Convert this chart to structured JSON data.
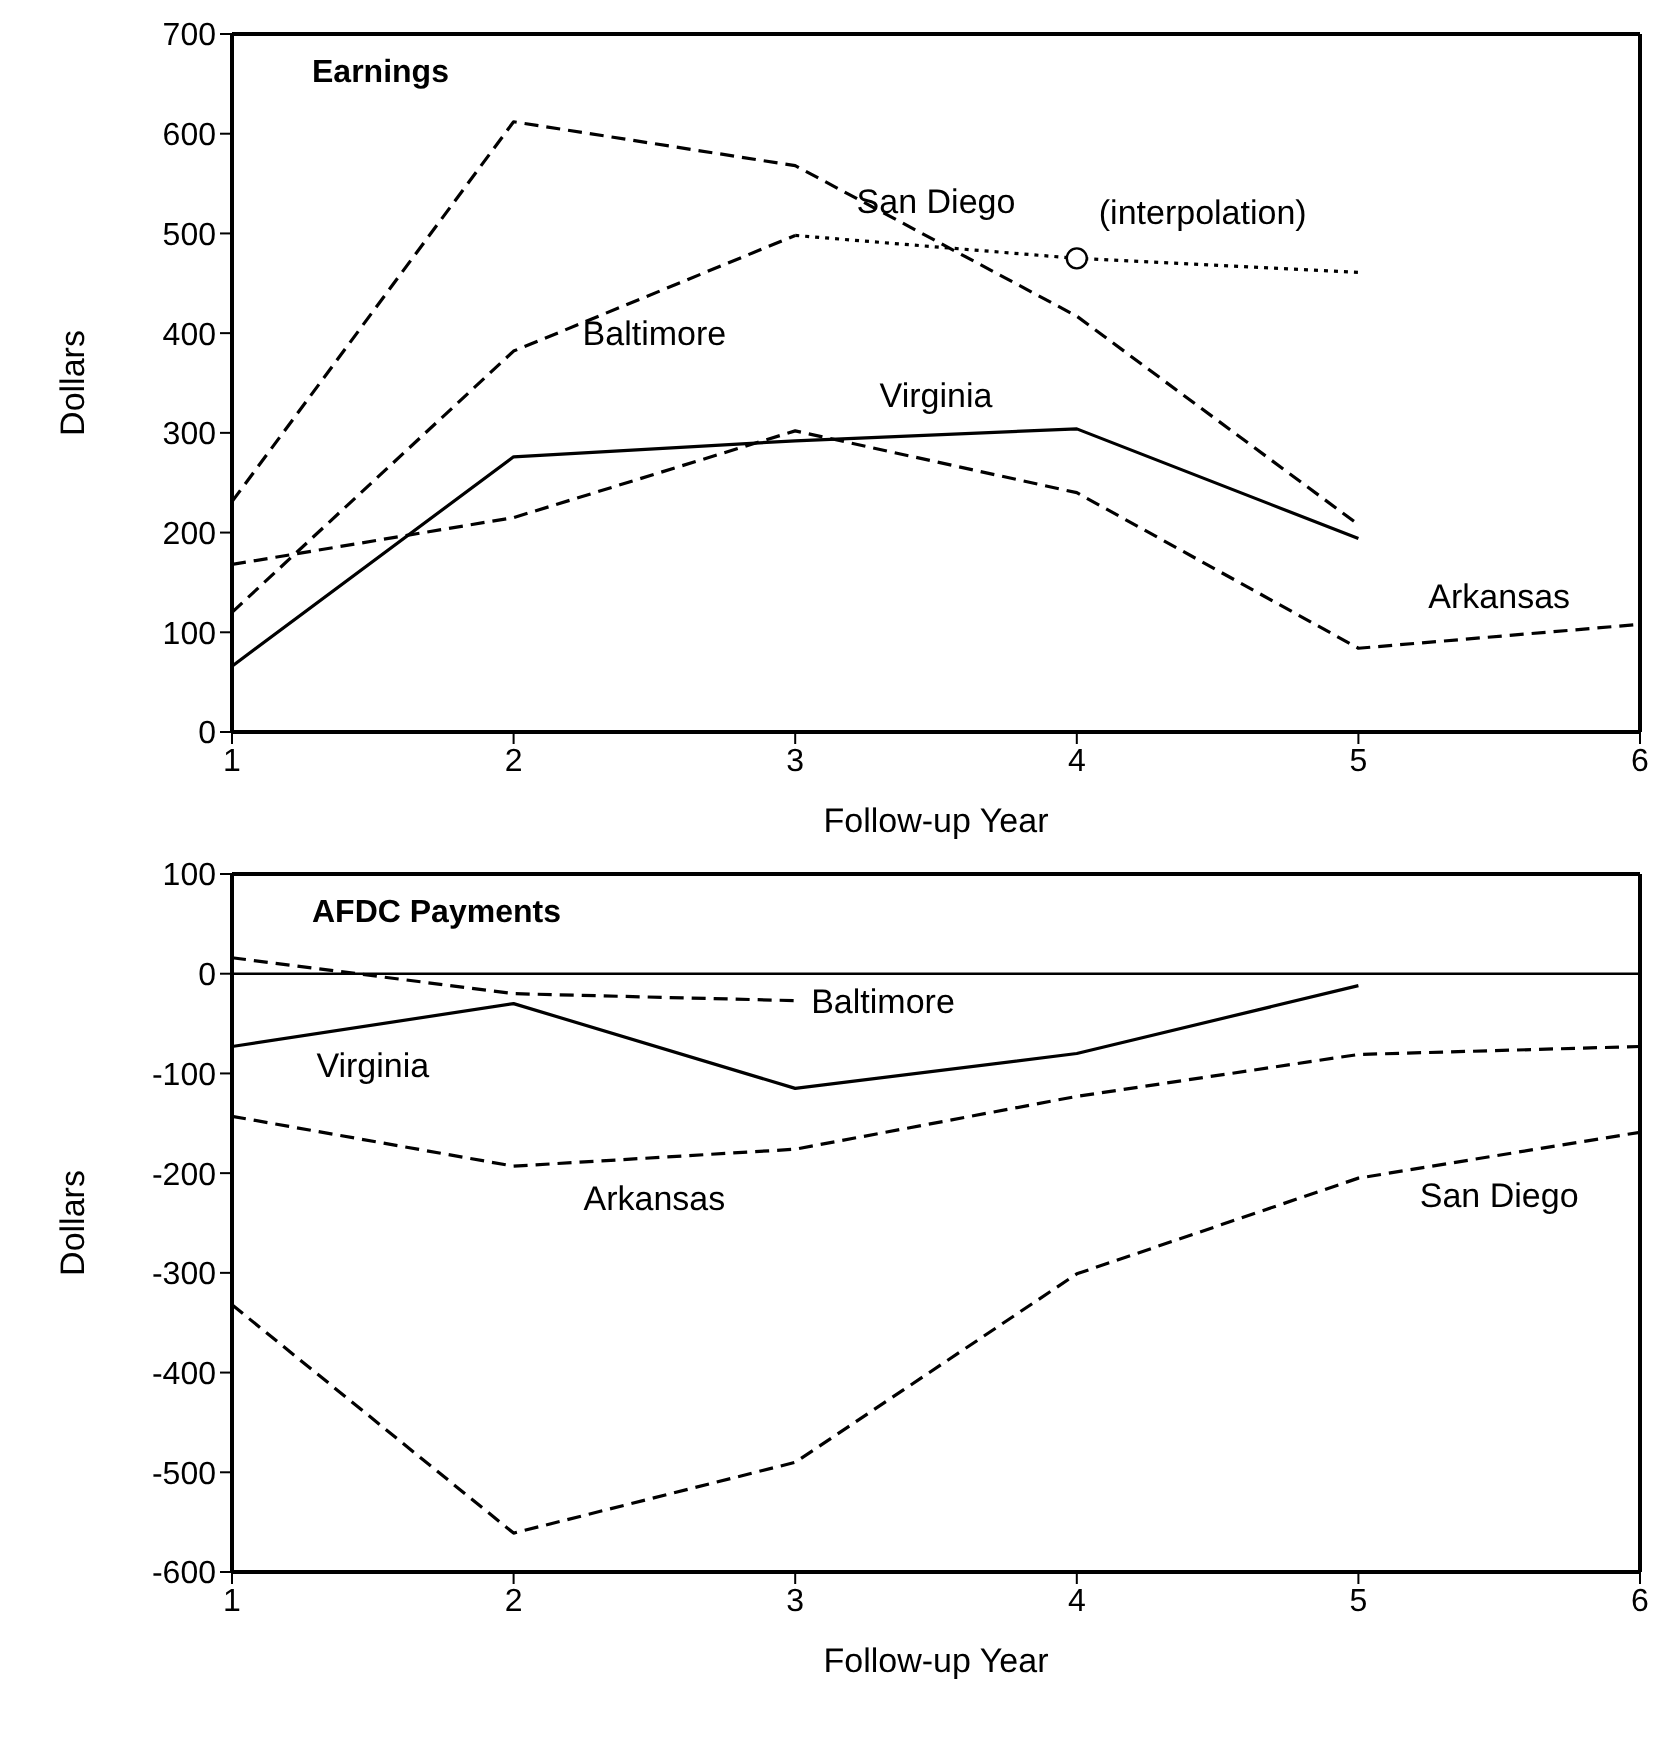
{
  "chart_data": [
    {
      "type": "line",
      "title": "Earnings",
      "xlabel": "Follow-up Year",
      "ylabel": "Dollars",
      "x": [
        1,
        2,
        3,
        4,
        5,
        6
      ],
      "xlim": [
        1,
        6
      ],
      "xticks": [
        1,
        2,
        3,
        4,
        5,
        6
      ],
      "ylim": [
        0,
        700
      ],
      "yticks": [
        0,
        100,
        200,
        300,
        400,
        500,
        600,
        700
      ],
      "grid": false,
      "legend": false,
      "marker": "none",
      "series": [
        {
          "name": "San Diego",
          "color": "#000000",
          "line_style": "dashed",
          "values": [
            231,
            612,
            568,
            417,
            208,
            null
          ]
        },
        {
          "name": "Baltimore",
          "color": "#000000",
          "line_style": "dashed",
          "values": [
            120,
            382,
            498,
            null,
            null,
            null
          ]
        },
        {
          "color": "#000000",
          "line_style": "dotted",
          "values": [
            null,
            null,
            498,
            475,
            461,
            null
          ]
        },
        {
          "name": "Virginia",
          "color": "#000000",
          "line_style": "solid",
          "values": [
            66,
            276,
            292,
            304,
            194,
            null
          ]
        },
        {
          "name": "Arkansas",
          "color": "#000000",
          "line_style": "dashed",
          "values": [
            168,
            215,
            302,
            240,
            84,
            108
          ]
        }
      ],
      "annotations": [
        {
          "text": "(interpolation)",
          "x": 4,
          "y": 475
        }
      ]
    },
    {
      "type": "line",
      "title": "AFDC Payments",
      "xlabel": "Follow-up Year",
      "ylabel": "Dollars",
      "x": [
        1,
        2,
        3,
        4,
        5,
        6
      ],
      "xlim": [
        1,
        6
      ],
      "xticks": [
        1,
        2,
        3,
        4,
        5,
        6
      ],
      "ylim": [
        -600,
        100
      ],
      "yticks": [
        -600,
        -500,
        -400,
        -300,
        -200,
        -100,
        0,
        100
      ],
      "grid": false,
      "legend": false,
      "marker": "none",
      "ref_lines": [
        {
          "axis": "y",
          "value": 0,
          "color": "#000000"
        }
      ],
      "series": [
        {
          "name": "Baltimore",
          "color": "#000000",
          "line_style": "dashed",
          "values": [
            16,
            -20,
            -27,
            null,
            null,
            null
          ]
        },
        {
          "name": "Virginia",
          "color": "#000000",
          "line_style": "solid",
          "values": [
            -73,
            -30,
            -115,
            -80,
            -12,
            null
          ]
        },
        {
          "name": "Arkansas",
          "color": "#000000",
          "line_style": "dashed",
          "values": [
            -143,
            -193,
            -176,
            -123,
            -81,
            -73
          ]
        },
        {
          "name": "San Diego",
          "color": "#000000",
          "line_style": "dashed",
          "values": [
            -332,
            -561,
            -490,
            -301,
            -205,
            -159
          ]
        }
      ]
    }
  ]
}
